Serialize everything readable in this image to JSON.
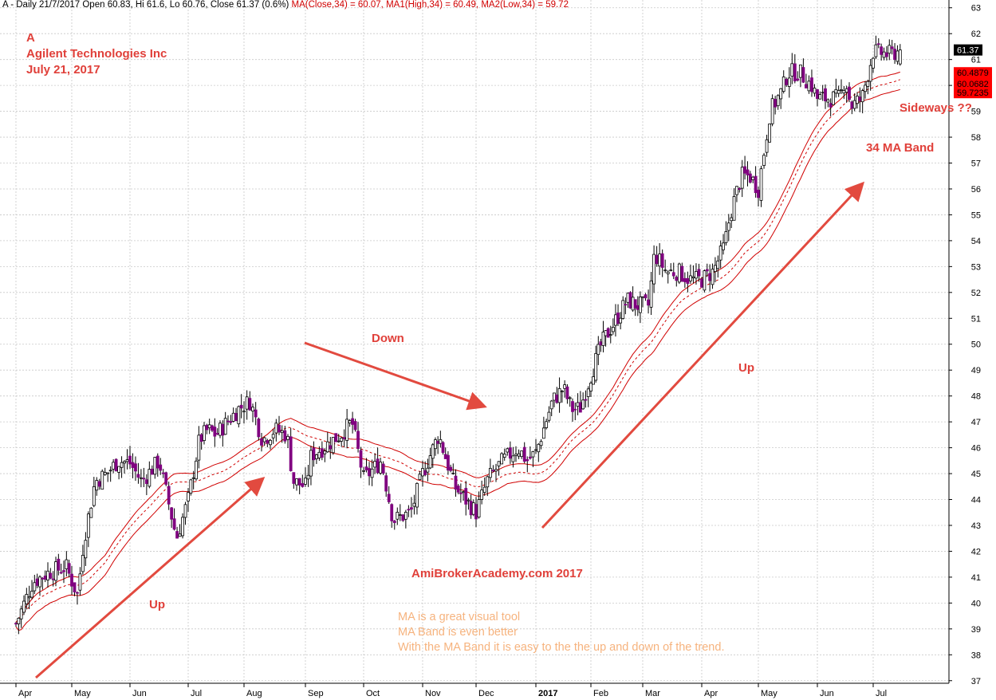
{
  "header": {
    "symbol_line": "A - Daily 21/7/2017 Open 60.83, Hi 61.6, Lo 60.76, Close 61.37 (0.6%)",
    "ma_close": "MA(Close,34) = 60.07,",
    "ma_high": "MA1(High,34) = 60.49,",
    "ma_low": "MA2(Low,34) = 59.72"
  },
  "title": {
    "ticker": "A",
    "company": "Agilent Technologies Inc",
    "date": "July 21, 2017"
  },
  "annotations": {
    "up_left": "Up",
    "down": "Down",
    "up_right": "Up",
    "sideways": "Sideways ??",
    "ma_band": "34 MA Band",
    "watermark": "AmiBrokerAcademy.com  2017",
    "note_line1": "MA is a great visual tool",
    "note_line2": "MA Band is even better",
    "note_line3": "With the MA Band it is easy to the the up and down of the trend."
  },
  "price_tags": {
    "close": "61.37",
    "ma_high": "60.4879",
    "ma_close": "60.0682",
    "ma_low": "59.7235"
  },
  "colors": {
    "candle": "#800080",
    "ma_band": "#d00000",
    "annotation": "#e0403a",
    "note": "#f6b37e",
    "grid": "#c8c8c8"
  },
  "chart_data": {
    "type": "candlestick",
    "x_tick_labels": [
      "Apr",
      "May",
      "Jun",
      "Jul",
      "Aug",
      "Sep",
      "Oct",
      "Nov",
      "Dec",
      "2017",
      "Feb",
      "Mar",
      "Apr",
      "May",
      "Jun",
      "Jul"
    ],
    "y_ticks": [
      37,
      38,
      39,
      40,
      41,
      42,
      43,
      44,
      45,
      46,
      47,
      48,
      49,
      50,
      51,
      52,
      53,
      54,
      55,
      56,
      57,
      58,
      59,
      60,
      61,
      62,
      63
    ],
    "ylim": [
      36.9,
      63.3
    ],
    "x_range_months": [
      0,
      15.85
    ],
    "grid": true,
    "close_series": {
      "months": [
        0.0,
        0.3,
        0.6,
        0.9,
        1.1,
        1.2,
        1.4,
        1.6,
        1.8,
        2.0,
        2.2,
        2.5,
        2.8,
        3.0,
        3.2,
        3.35,
        3.5,
        3.7,
        3.9,
        4.1,
        4.3,
        4.5,
        4.7,
        4.8,
        5.0,
        5.1,
        5.3,
        5.6,
        5.8,
        6.0,
        6.3,
        6.5,
        6.8,
        7.0,
        7.3,
        7.6,
        7.8,
        8.0,
        8.2,
        8.45,
        8.7,
        8.85,
        9.0,
        9.3,
        9.5,
        9.65,
        9.8,
        10.0,
        10.2,
        10.5,
        10.7,
        10.9,
        11.1,
        11.2,
        11.4,
        11.6,
        11.8,
        12.0,
        12.2,
        12.4,
        12.5,
        12.7,
        12.85,
        13.0,
        13.2,
        13.4,
        13.5,
        13.7,
        13.9,
        14.0,
        14.2,
        14.4,
        14.5,
        14.6,
        14.8,
        15.0,
        15.3,
        15.5
      ],
      "close": [
        39.2,
        40.8,
        41.2,
        41.4,
        40.3,
        42.3,
        44.7,
        45.0,
        45.5,
        45.4,
        44.7,
        45.5,
        42.5,
        44.0,
        46.3,
        46.7,
        46.5,
        47.0,
        47.5,
        47.8,
        46.3,
        46.7,
        46.5,
        44.7,
        44.5,
        45.7,
        46.0,
        46.5,
        47.0,
        44.8,
        45.5,
        43.2,
        43.5,
        45.0,
        46.5,
        44.5,
        44.0,
        43.5,
        44.8,
        45.5,
        46.0,
        45.5,
        45.8,
        47.8,
        48.3,
        47.5,
        47.5,
        48.8,
        50.0,
        51.0,
        51.7,
        51.5,
        51.5,
        53.5,
        52.8,
        52.8,
        52.5,
        52.5,
        52.8,
        53.8,
        55.0,
        56.5,
        56.5,
        56.0,
        59.0,
        59.8,
        60.5,
        60.5,
        60.0,
        59.5,
        59.5,
        59.5,
        60.3,
        59.2,
        59.5,
        61.3,
        61.2,
        61.37
      ]
    },
    "series": [
      {
        "name": "MA(Close,34)",
        "last": 60.07,
        "color": "#d00000",
        "style": "dashed"
      },
      {
        "name": "MA1(High,34)",
        "last": 60.49,
        "color": "#d00000",
        "style": "solid"
      },
      {
        "name": "MA2(Low,34)",
        "last": 59.72,
        "color": "#d00000",
        "style": "solid"
      }
    ],
    "last_bar": {
      "date": "21/7/2017",
      "open": 60.83,
      "high": 61.6,
      "low": 60.76,
      "close": 61.37,
      "change_pct": 0.6
    }
  }
}
